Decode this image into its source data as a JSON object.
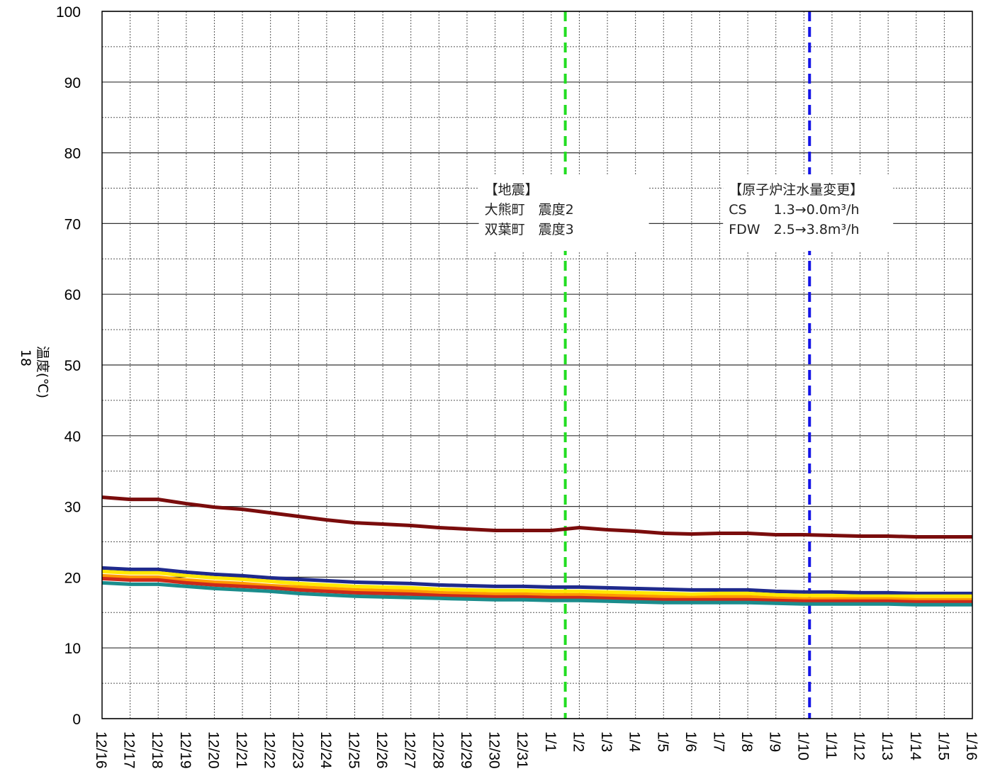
{
  "chart_data": {
    "type": "line",
    "ylabel": "温度(℃)",
    "ylabel_prefix": "18",
    "ylim": [
      0,
      100
    ],
    "yticks": [
      0,
      10,
      20,
      30,
      40,
      50,
      60,
      70,
      80,
      90,
      100
    ],
    "grid": true,
    "x": [
      "12/16",
      "12/17",
      "12/18",
      "12/19",
      "12/20",
      "12/21",
      "12/22",
      "12/23",
      "12/24",
      "12/25",
      "12/26",
      "12/27",
      "12/28",
      "12/29",
      "12/30",
      "12/31",
      "1/1",
      "1/2",
      "1/3",
      "1/4",
      "1/5",
      "1/6",
      "1/7",
      "1/8",
      "1/9",
      "1/10",
      "1/11",
      "1/12",
      "1/13",
      "1/14",
      "1/15",
      "1/16"
    ],
    "series": [
      {
        "color": "#7a0c0c",
        "values": [
          31.3,
          31.0,
          31.0,
          30.4,
          29.9,
          29.6,
          29.1,
          28.6,
          28.1,
          27.7,
          27.5,
          27.3,
          27.0,
          26.8,
          26.6,
          26.6,
          26.6,
          27.0,
          26.7,
          26.5,
          26.2,
          26.1,
          26.2,
          26.2,
          26.0,
          26.0,
          25.9,
          25.8,
          25.8,
          25.7,
          25.7,
          25.7
        ]
      },
      {
        "color": "#1f2a8c",
        "values": [
          21.3,
          21.1,
          21.1,
          20.7,
          20.4,
          20.2,
          19.9,
          19.7,
          19.5,
          19.3,
          19.2,
          19.1,
          18.9,
          18.8,
          18.7,
          18.7,
          18.6,
          18.6,
          18.5,
          18.4,
          18.3,
          18.2,
          18.2,
          18.2,
          18.0,
          17.9,
          17.9,
          17.8,
          17.8,
          17.7,
          17.7,
          17.7
        ]
      },
      {
        "color": "#ffe800",
        "values": [
          20.8,
          20.6,
          20.6,
          20.2,
          19.9,
          19.7,
          19.4,
          19.1,
          18.9,
          18.7,
          18.6,
          18.5,
          18.3,
          18.2,
          18.1,
          18.1,
          18.0,
          18.0,
          17.9,
          17.8,
          17.7,
          17.6,
          17.7,
          17.7,
          17.5,
          17.4,
          17.4,
          17.3,
          17.3,
          17.3,
          17.3,
          17.3
        ]
      },
      {
        "color": "#ff9900",
        "values": [
          20.2,
          20.0,
          20.0,
          19.6,
          19.3,
          19.1,
          18.8,
          18.6,
          18.4,
          18.2,
          18.1,
          18.0,
          17.8,
          17.7,
          17.6,
          17.6,
          17.5,
          17.5,
          17.4,
          17.3,
          17.2,
          17.1,
          17.2,
          17.2,
          17.0,
          16.9,
          16.9,
          16.9,
          16.9,
          16.8,
          16.8,
          16.8
        ]
      },
      {
        "color": "#cc2a1a",
        "values": [
          19.8,
          19.6,
          19.6,
          19.2,
          18.9,
          18.7,
          18.5,
          18.2,
          18.0,
          17.8,
          17.7,
          17.6,
          17.4,
          17.3,
          17.2,
          17.2,
          17.1,
          17.1,
          17.0,
          16.9,
          16.8,
          16.8,
          16.8,
          16.8,
          16.7,
          16.6,
          16.6,
          16.6,
          16.6,
          16.5,
          16.5,
          16.5
        ]
      },
      {
        "color": "#1a8c8c",
        "values": [
          19.2,
          19.0,
          19.0,
          18.7,
          18.4,
          18.2,
          18.0,
          17.7,
          17.5,
          17.3,
          17.2,
          17.1,
          17.0,
          16.9,
          16.8,
          16.8,
          16.7,
          16.7,
          16.6,
          16.5,
          16.4,
          16.4,
          16.4,
          16.4,
          16.3,
          16.2,
          16.2,
          16.2,
          16.2,
          16.1,
          16.1,
          16.1
        ]
      }
    ],
    "events": [
      {
        "x": 16.5,
        "color": "#22dd22",
        "lines": [
          "【地震】",
          "大熊町　震度2",
          "双葉町　震度3"
        ]
      },
      {
        "x": 25.2,
        "color": "#1414e6",
        "lines": [
          "【原子炉注水量変更】",
          "CS　　1.3→0.0m³/h",
          "FDW　2.5→3.8m³/h"
        ]
      }
    ]
  }
}
